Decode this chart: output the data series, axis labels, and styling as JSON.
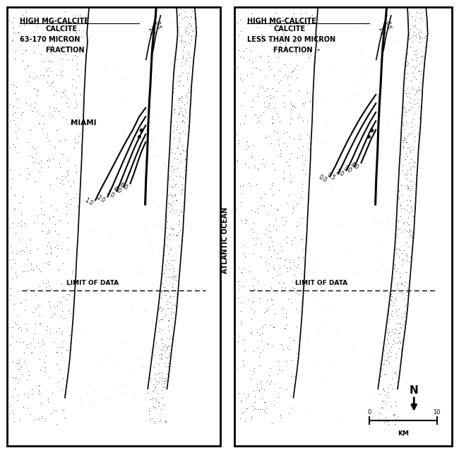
{
  "fig_width": 6.5,
  "fig_height": 6.41,
  "bg_color": "#ffffff",
  "left_panel": {
    "title_line1": "HIGH MG-CALCITE",
    "title_line2": "CALCITE",
    "title_line3": "63-170 MICRON",
    "title_line4": "FRACTION",
    "label_miami": "MIAMI",
    "label_limit": "LIMIT OF DATA"
  },
  "right_panel": {
    "title_line1": "HIGH MG-CALCITE",
    "title_line2": "CALCITE",
    "title_line3": "LESS THAN 20 MICRON",
    "title_line4": "FRACTION  -",
    "label_limit": "LIMIT OF DATA"
  },
  "label_atlantic": "ATLANTIC OCEAN",
  "compass_N": "N",
  "scale_label": "KM",
  "scale_0": "0",
  "scale_10": "10"
}
